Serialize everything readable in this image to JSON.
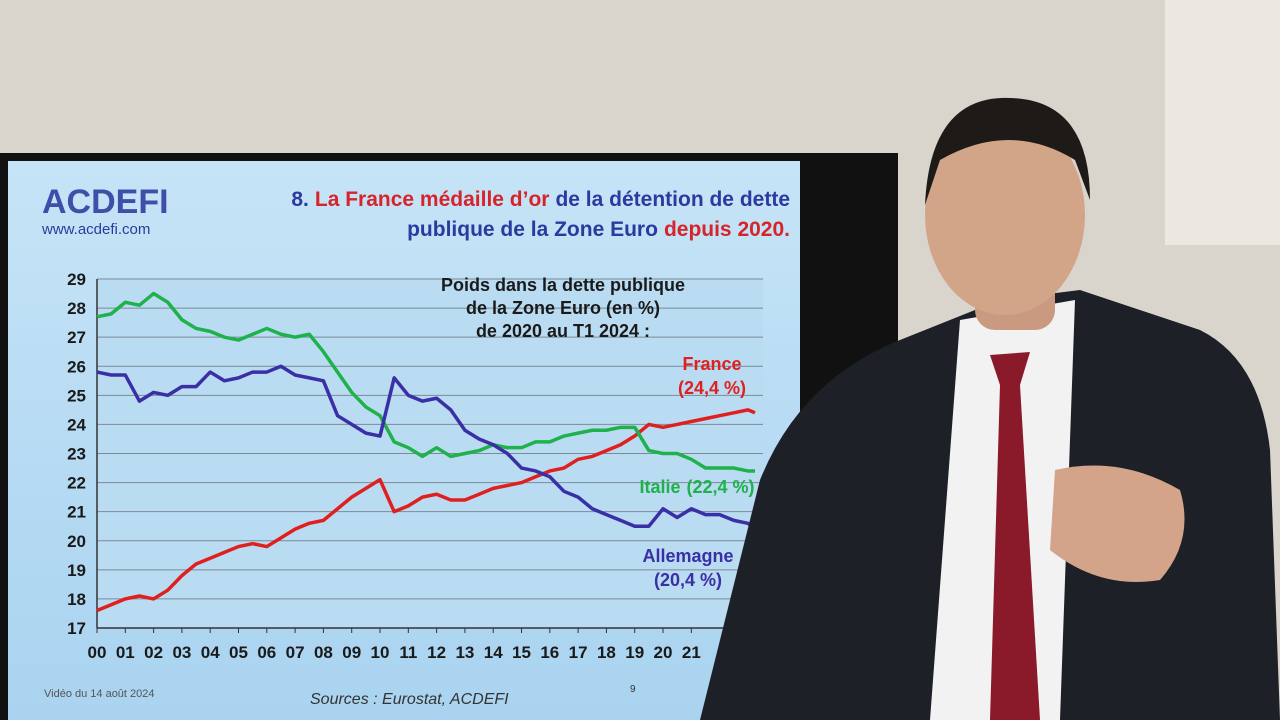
{
  "header": {
    "logo": "ACDEFI",
    "website": "www.acdefi.com",
    "title_parts": [
      {
        "text": "8.",
        "color": "#2b3a9e"
      },
      {
        "text": "La France médaille d’or",
        "color": "#d6242a"
      },
      {
        "text": "de la détention de dette",
        "color": "#2b3a9e"
      },
      {
        "text": "publique de la Zone Euro",
        "color": "#2b3a9e"
      },
      {
        "text": "depuis 2020.",
        "color": "#d6242a"
      }
    ]
  },
  "chart_data": {
    "type": "line",
    "annotation": [
      "Poids dans la dette publique",
      "de la Zone Euro (en %)",
      "de 2020 au T1 2024 :"
    ],
    "x": [
      0,
      0.5,
      1,
      1.5,
      2,
      2.5,
      3,
      3.5,
      4,
      4.5,
      5,
      5.5,
      6,
      6.5,
      7,
      7.5,
      8,
      8.5,
      9,
      9.5,
      10,
      10.5,
      11,
      11.5,
      12,
      12.5,
      13,
      13.5,
      14,
      14.5,
      15,
      15.5,
      16,
      16.5,
      17,
      17.5,
      18,
      18.5,
      19,
      19.5,
      20,
      20.5,
      21,
      21.5,
      22,
      22.5,
      23,
      23.25
    ],
    "series": [
      {
        "name": "France",
        "end_label": "(24,4 %)",
        "end_value": 24.4,
        "color": "#e0201f",
        "values": [
          17.6,
          17.8,
          18.0,
          18.1,
          18.0,
          18.3,
          18.8,
          19.2,
          19.4,
          19.6,
          19.8,
          19.9,
          19.8,
          20.1,
          20.4,
          20.6,
          20.7,
          21.1,
          21.5,
          21.8,
          22.1,
          21.0,
          21.2,
          21.5,
          21.6,
          21.4,
          21.4,
          21.6,
          21.8,
          21.9,
          22.0,
          22.2,
          22.4,
          22.5,
          22.8,
          22.9,
          23.1,
          23.3,
          23.6,
          24.0,
          23.9,
          24.0,
          24.1,
          24.2,
          24.3,
          24.4,
          24.5,
          24.4
        ]
      },
      {
        "name": "Italie",
        "end_label": "(22,4 %)",
        "end_value": 22.4,
        "color": "#1fb14a",
        "values": [
          27.7,
          27.8,
          28.2,
          28.1,
          28.5,
          28.2,
          27.6,
          27.3,
          27.2,
          27.0,
          26.9,
          27.1,
          27.3,
          27.1,
          27.0,
          27.1,
          26.5,
          25.8,
          25.1,
          24.6,
          24.3,
          23.4,
          23.2,
          22.9,
          23.2,
          22.9,
          23.0,
          23.1,
          23.3,
          23.2,
          23.2,
          23.4,
          23.4,
          23.6,
          23.7,
          23.8,
          23.8,
          23.9,
          23.9,
          23.1,
          23.0,
          23.0,
          22.8,
          22.5,
          22.5,
          22.5,
          22.4,
          22.4
        ]
      },
      {
        "name": "Allemagne",
        "end_label": "(20,4 %)",
        "end_value": 20.4,
        "color": "#3b2fa5",
        "values": [
          25.8,
          25.7,
          25.7,
          24.8,
          25.1,
          25.0,
          25.3,
          25.3,
          25.8,
          25.5,
          25.6,
          25.8,
          25.8,
          26.0,
          25.7,
          25.6,
          25.5,
          24.3,
          24.0,
          23.7,
          23.6,
          25.6,
          25.0,
          24.8,
          24.9,
          24.5,
          23.8,
          23.5,
          23.3,
          23.0,
          22.5,
          22.4,
          22.2,
          21.7,
          21.5,
          21.1,
          20.9,
          20.7,
          20.5,
          20.5,
          21.1,
          20.8,
          21.1,
          20.9,
          20.9,
          20.7,
          20.6,
          20.4
        ]
      }
    ],
    "xlim": [
      0,
      23.25
    ],
    "ylim": [
      17,
      29
    ],
    "xticks": [
      {
        "value": 0,
        "label": "00"
      },
      {
        "value": 1,
        "label": "01"
      },
      {
        "value": 2,
        "label": "02"
      },
      {
        "value": 3,
        "label": "03"
      },
      {
        "value": 4,
        "label": "04"
      },
      {
        "value": 5,
        "label": "05"
      },
      {
        "value": 6,
        "label": "06"
      },
      {
        "value": 7,
        "label": "07"
      },
      {
        "value": 8,
        "label": "08"
      },
      {
        "value": 9,
        "label": "09"
      },
      10,
      11,
      12,
      13,
      14,
      15,
      16,
      17,
      18,
      19,
      20,
      21
    ],
    "yticks": [
      17,
      18,
      19,
      20,
      21,
      22,
      23,
      24,
      25,
      26,
      27,
      28,
      29
    ],
    "grid": true
  },
  "footer": {
    "date": "Vidéo du 14 août 2024",
    "sources": "Sources : Eurostat, ACDEFI",
    "page": "9"
  }
}
